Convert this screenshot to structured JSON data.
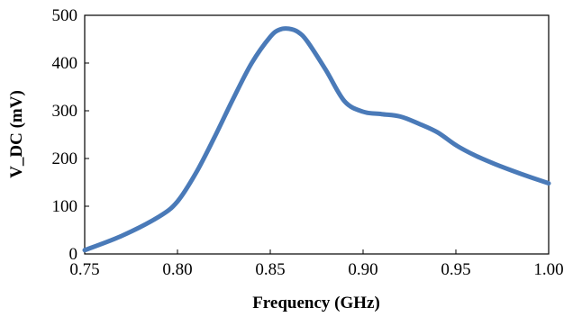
{
  "chart_data": {
    "type": "line",
    "title": "",
    "xlabel": "Frequency (GHz)",
    "ylabel": "V_DC (mV)",
    "xlim": [
      0.75,
      1.0
    ],
    "ylim": [
      0,
      500
    ],
    "xticks": [
      "0.75",
      "0.80",
      "0.85",
      "0.90",
      "0.95",
      "1.00"
    ],
    "yticks": [
      "0",
      "100",
      "200",
      "300",
      "400",
      "500"
    ],
    "grid": false,
    "legend": "none",
    "series": [
      {
        "color": "#4a7ab8",
        "x": [
          0.75,
          0.77,
          0.79,
          0.8,
          0.81,
          0.82,
          0.83,
          0.84,
          0.85,
          0.855,
          0.86,
          0.865,
          0.87,
          0.88,
          0.89,
          0.9,
          0.91,
          0.92,
          0.93,
          0.94,
          0.95,
          0.96,
          0.97,
          0.98,
          0.99,
          1.0
        ],
        "y": [
          8,
          38,
          78,
          110,
          170,
          245,
          325,
          400,
          455,
          470,
          472,
          465,
          445,
          385,
          320,
          298,
          293,
          288,
          273,
          255,
          228,
          207,
          190,
          175,
          161,
          148
        ]
      }
    ]
  }
}
